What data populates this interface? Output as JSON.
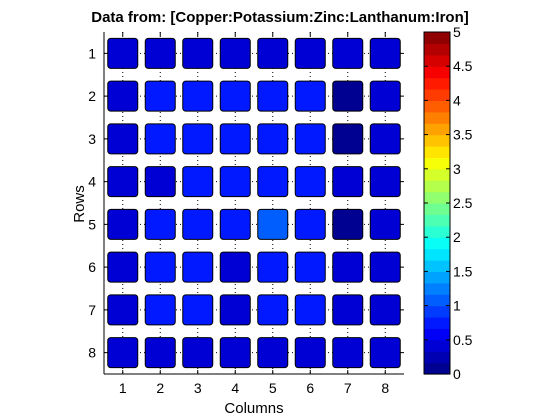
{
  "chart_data": {
    "type": "heatmap",
    "title": "Data from: [Copper:Potassium:Zinc:Lanthanum:Iron]",
    "xlabel": "Columns",
    "ylabel": "Rows",
    "x_ticks": [
      "1",
      "2",
      "3",
      "4",
      "5",
      "6",
      "7",
      "8"
    ],
    "y_ticks": [
      "1",
      "2",
      "3",
      "4",
      "5",
      "6",
      "7",
      "8"
    ],
    "colorbar": {
      "range": [
        0,
        5
      ],
      "ticks": [
        "0",
        "0.5",
        "1",
        "1.5",
        "2",
        "2.5",
        "3",
        "3.5",
        "4",
        "4.5",
        "5"
      ],
      "levels": 30,
      "colormap": "jet"
    },
    "grid": true,
    "values": [
      [
        0.35,
        0.35,
        0.35,
        0.35,
        0.35,
        0.35,
        0.35,
        0.35
      ],
      [
        0.4,
        0.75,
        0.8,
        0.8,
        0.8,
        0.8,
        0.1,
        0.4
      ],
      [
        0.4,
        0.75,
        0.8,
        0.8,
        0.8,
        0.8,
        0.1,
        0.4
      ],
      [
        0.35,
        0.45,
        0.75,
        0.75,
        0.75,
        0.75,
        0.35,
        0.35
      ],
      [
        0.35,
        0.75,
        0.75,
        0.75,
        1.0,
        0.75,
        0.1,
        0.35
      ],
      [
        0.35,
        0.75,
        0.75,
        0.45,
        0.75,
        0.75,
        0.35,
        0.35
      ],
      [
        0.35,
        0.75,
        0.75,
        0.45,
        0.75,
        0.75,
        0.35,
        0.35
      ],
      [
        0.35,
        0.35,
        0.35,
        0.35,
        0.35,
        0.35,
        0.35,
        0.35
      ]
    ]
  }
}
